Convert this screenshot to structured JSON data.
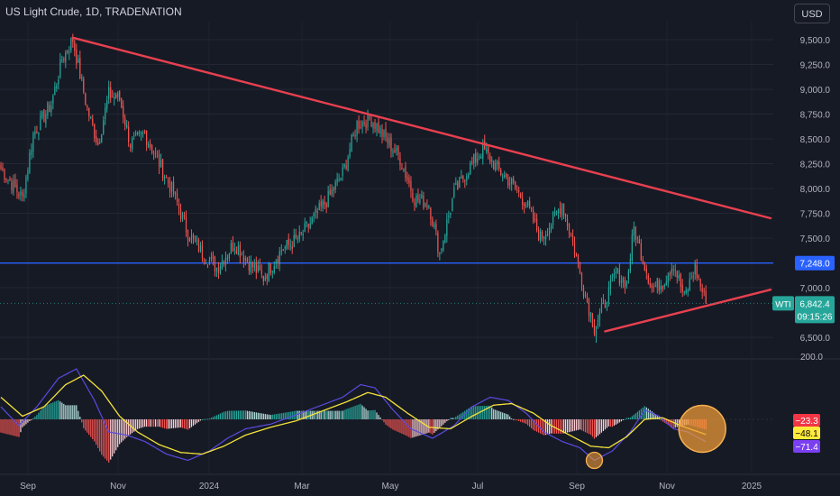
{
  "header": {
    "title": "US Light Crude, 1D, TRADENATION",
    "currency_button": "USD"
  },
  "colors": {
    "background": "#161a25",
    "up": "#26a69a",
    "down": "#ef5350",
    "trendline": "#e8404f",
    "hline": "#2962ff",
    "signal": "#f5e33a",
    "macd_line": "#5b4ae0",
    "highlight": "#f29d38"
  },
  "chart_data": [
    {
      "type": "candlestick",
      "x_axis_labels": [
        "Sep",
        "Nov",
        "2024",
        "Mar",
        "May",
        "Jul",
        "Sep",
        "Nov",
        "2025"
      ],
      "y_ticks": [
        "9,500.0",
        "9,250.0",
        "9,000.0",
        "8,750.0",
        "8,500.0",
        "8,250.0",
        "8,000.0",
        "7,750.0",
        "7,500.0",
        "7,000.0",
        "6,500.0"
      ],
      "ylim": [
        6400,
        9800
      ],
      "keypoints": [
        {
          "x": 0,
          "price": 8200
        },
        {
          "x": 12,
          "price": 7900
        },
        {
          "x": 18,
          "price": 8550
        },
        {
          "x": 28,
          "price": 8850
        },
        {
          "x": 34,
          "price": 9300
        },
        {
          "x": 40,
          "price": 9500
        },
        {
          "x": 48,
          "price": 8800
        },
        {
          "x": 54,
          "price": 8450
        },
        {
          "x": 60,
          "price": 8950
        },
        {
          "x": 66,
          "price": 8900
        },
        {
          "x": 72,
          "price": 8450
        },
        {
          "x": 80,
          "price": 8550
        },
        {
          "x": 88,
          "price": 8250
        },
        {
          "x": 96,
          "price": 7950
        },
        {
          "x": 104,
          "price": 7550
        },
        {
          "x": 112,
          "price": 7350
        },
        {
          "x": 120,
          "price": 7200
        },
        {
          "x": 130,
          "price": 7450
        },
        {
          "x": 138,
          "price": 7250
        },
        {
          "x": 146,
          "price": 7100
        },
        {
          "x": 156,
          "price": 7380
        },
        {
          "x": 166,
          "price": 7500
        },
        {
          "x": 174,
          "price": 7700
        },
        {
          "x": 182,
          "price": 7900
        },
        {
          "x": 190,
          "price": 8150
        },
        {
          "x": 198,
          "price": 8650
        },
        {
          "x": 206,
          "price": 8700
        },
        {
          "x": 214,
          "price": 8500
        },
        {
          "x": 222,
          "price": 8300
        },
        {
          "x": 230,
          "price": 7900
        },
        {
          "x": 238,
          "price": 7850
        },
        {
          "x": 244,
          "price": 7350
        },
        {
          "x": 252,
          "price": 7950
        },
        {
          "x": 260,
          "price": 8200
        },
        {
          "x": 268,
          "price": 8400
        },
        {
          "x": 276,
          "price": 8200
        },
        {
          "x": 284,
          "price": 8050
        },
        {
          "x": 292,
          "price": 7850
        },
        {
          "x": 300,
          "price": 7500
        },
        {
          "x": 306,
          "price": 7650
        },
        {
          "x": 312,
          "price": 7850
        },
        {
          "x": 318,
          "price": 7450
        },
        {
          "x": 324,
          "price": 7000
        },
        {
          "x": 330,
          "price": 6600
        },
        {
          "x": 336,
          "price": 6850
        },
        {
          "x": 342,
          "price": 7150
        },
        {
          "x": 348,
          "price": 7050
        },
        {
          "x": 352,
          "price": 7600
        },
        {
          "x": 356,
          "price": 7350
        },
        {
          "x": 362,
          "price": 7000
        },
        {
          "x": 368,
          "price": 7050
        },
        {
          "x": 374,
          "price": 7250
        },
        {
          "x": 380,
          "price": 6900
        },
        {
          "x": 386,
          "price": 7200
        },
        {
          "x": 392,
          "price": 6842
        }
      ],
      "horizontal_line": {
        "price": 7248,
        "label": "7,248.0"
      },
      "trendlines": [
        {
          "from": {
            "x": 40,
            "price": 9520
          },
          "to": {
            "x": 428,
            "price": 7700
          }
        },
        {
          "from": {
            "x": 336,
            "price": 6560
          },
          "to": {
            "x": 428,
            "price": 6980
          }
        }
      ],
      "last_price": {
        "symbol": "WTI",
        "price": "6,842.4",
        "countdown": "09:15:26"
      }
    },
    {
      "type": "oscillator",
      "y_ticks": [
        "200.0"
      ],
      "values_labels": [
        {
          "text": "−23.3",
          "color": "#f23645",
          "text_color": "#ffffff"
        },
        {
          "text": "−48.1",
          "color": "#ffeb3b",
          "text_color": "#000000"
        },
        {
          "text": "−71.4",
          "color": "#7b3ff2",
          "text_color": "#ffffff"
        }
      ],
      "ylim": [
        -160,
        230
      ],
      "macd_keypoints": [
        {
          "x": 0,
          "v": 40
        },
        {
          "x": 10,
          "v": -20
        },
        {
          "x": 20,
          "v": 40
        },
        {
          "x": 32,
          "v": 130
        },
        {
          "x": 42,
          "v": 160
        },
        {
          "x": 52,
          "v": 60
        },
        {
          "x": 60,
          "v": -40
        },
        {
          "x": 70,
          "v": -50
        },
        {
          "x": 80,
          "v": -70
        },
        {
          "x": 92,
          "v": -110
        },
        {
          "x": 104,
          "v": -130
        },
        {
          "x": 116,
          "v": -100
        },
        {
          "x": 126,
          "v": -60
        },
        {
          "x": 136,
          "v": -30
        },
        {
          "x": 150,
          "v": -15
        },
        {
          "x": 162,
          "v": 10
        },
        {
          "x": 176,
          "v": 40
        },
        {
          "x": 190,
          "v": 70
        },
        {
          "x": 200,
          "v": 110
        },
        {
          "x": 208,
          "v": 100
        },
        {
          "x": 218,
          "v": 30
        },
        {
          "x": 228,
          "v": -30
        },
        {
          "x": 240,
          "v": -60
        },
        {
          "x": 252,
          "v": -20
        },
        {
          "x": 262,
          "v": 40
        },
        {
          "x": 272,
          "v": 70
        },
        {
          "x": 282,
          "v": 60
        },
        {
          "x": 292,
          "v": 20
        },
        {
          "x": 302,
          "v": -40
        },
        {
          "x": 312,
          "v": -70
        },
        {
          "x": 322,
          "v": -90
        },
        {
          "x": 330,
          "v": -130
        },
        {
          "x": 340,
          "v": -100
        },
        {
          "x": 350,
          "v": -40
        },
        {
          "x": 358,
          "v": 30
        },
        {
          "x": 366,
          "v": 10
        },
        {
          "x": 374,
          "v": -30
        },
        {
          "x": 382,
          "v": -40
        },
        {
          "x": 392,
          "v": -71
        }
      ],
      "signal_keypoints": [
        {
          "x": 0,
          "v": 70
        },
        {
          "x": 12,
          "v": 10
        },
        {
          "x": 24,
          "v": 40
        },
        {
          "x": 36,
          "v": 110
        },
        {
          "x": 46,
          "v": 140
        },
        {
          "x": 56,
          "v": 90
        },
        {
          "x": 66,
          "v": 10
        },
        {
          "x": 76,
          "v": -40
        },
        {
          "x": 88,
          "v": -80
        },
        {
          "x": 100,
          "v": -105
        },
        {
          "x": 112,
          "v": -110
        },
        {
          "x": 124,
          "v": -85
        },
        {
          "x": 136,
          "v": -50
        },
        {
          "x": 150,
          "v": -25
        },
        {
          "x": 164,
          "v": -5
        },
        {
          "x": 178,
          "v": 25
        },
        {
          "x": 192,
          "v": 55
        },
        {
          "x": 204,
          "v": 85
        },
        {
          "x": 214,
          "v": 70
        },
        {
          "x": 226,
          "v": 20
        },
        {
          "x": 238,
          "v": -25
        },
        {
          "x": 250,
          "v": -30
        },
        {
          "x": 262,
          "v": 10
        },
        {
          "x": 274,
          "v": 45
        },
        {
          "x": 284,
          "v": 50
        },
        {
          "x": 296,
          "v": 20
        },
        {
          "x": 306,
          "v": -20
        },
        {
          "x": 318,
          "v": -55
        },
        {
          "x": 328,
          "v": -85
        },
        {
          "x": 338,
          "v": -90
        },
        {
          "x": 348,
          "v": -55
        },
        {
          "x": 358,
          "v": 0
        },
        {
          "x": 368,
          "v": 5
        },
        {
          "x": 378,
          "v": -20
        },
        {
          "x": 392,
          "v": -48
        }
      ]
    }
  ]
}
